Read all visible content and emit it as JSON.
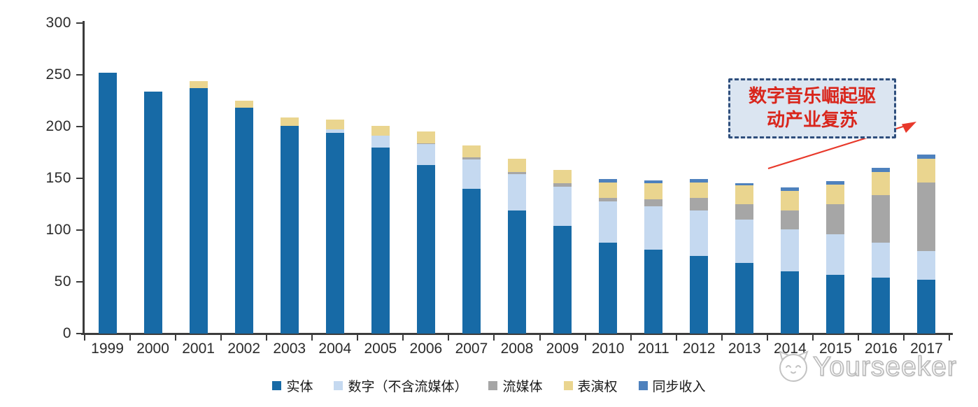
{
  "chart_data": {
    "type": "bar",
    "stacked": true,
    "title": "",
    "xlabel": "",
    "ylabel": "",
    "categories": [
      "1999",
      "2000",
      "2001",
      "2002",
      "2003",
      "2004",
      "2005",
      "2006",
      "2007",
      "2008",
      "2009",
      "2010",
      "2011",
      "2012",
      "2013",
      "2014",
      "2015",
      "2016",
      "2017"
    ],
    "series": [
      {
        "name": "实体",
        "color": "#176AA6",
        "values": [
          252,
          234,
          237,
          218,
          201,
          194,
          180,
          163,
          140,
          119,
          104,
          88,
          81,
          75,
          68,
          60,
          57,
          54,
          52
        ]
      },
      {
        "name": "数字（不含流媒体）",
        "color": "#C5D9F0",
        "values": [
          0,
          0,
          0,
          0,
          0,
          3,
          11,
          20,
          28,
          35,
          38,
          40,
          42,
          44,
          42,
          41,
          39,
          34,
          28
        ]
      },
      {
        "name": "流媒体",
        "color": "#A6A6A6",
        "values": [
          0,
          0,
          0,
          0,
          0,
          0,
          0,
          1,
          2,
          2,
          3,
          3,
          7,
          12,
          15,
          18,
          29,
          46,
          66
        ]
      },
      {
        "name": "表演权",
        "color": "#EAD58F",
        "values": [
          0,
          0,
          7,
          7,
          8,
          10,
          10,
          11,
          12,
          13,
          13,
          15,
          15,
          15,
          18,
          19,
          19,
          22,
          23
        ]
      },
      {
        "name": "同步收入",
        "color": "#4E81BD",
        "values": [
          0,
          0,
          0,
          0,
          0,
          0,
          0,
          0,
          0,
          0,
          0,
          3,
          3,
          3,
          2,
          3,
          3,
          4,
          4
        ]
      }
    ],
    "totals": [
      252,
      234,
      244,
      225,
      209,
      207,
      201,
      195,
      182,
      169,
      158,
      149,
      148,
      149,
      145,
      141,
      147,
      160,
      173
    ],
    "ylim": [
      0,
      300
    ],
    "yticks": [
      0,
      50,
      100,
      150,
      200,
      250,
      300
    ],
    "grid": false,
    "legend_position": "bottom",
    "axis_color": "#3c3c3c"
  },
  "annotation": {
    "line1": "数字音乐崛起驱",
    "line2": "动产业复苏",
    "text_color": "#D9261C",
    "border_color": "#2F4F7D",
    "bg_color": "#DBE5F1",
    "arrow_color": "#E8392B"
  },
  "watermark": {
    "text": "Yourseeker"
  }
}
